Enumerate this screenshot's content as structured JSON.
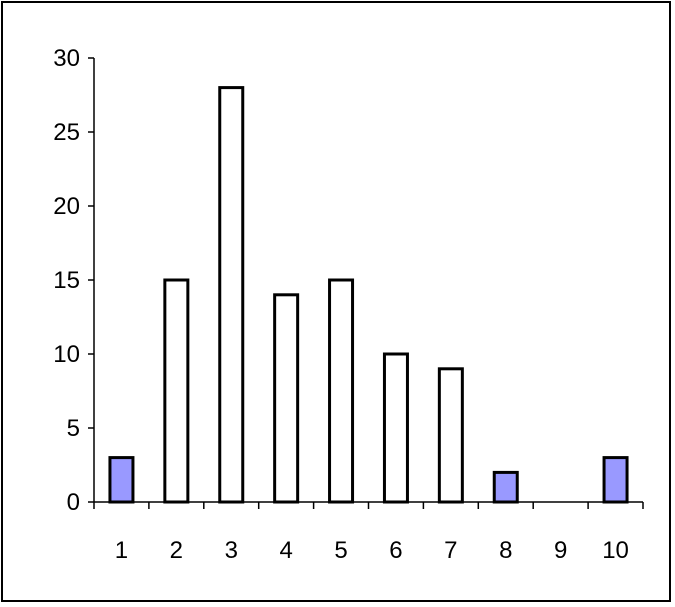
{
  "chart_data": {
    "type": "bar",
    "categories": [
      "1",
      "2",
      "3",
      "4",
      "5",
      "6",
      "7",
      "8",
      "9",
      "10"
    ],
    "values": [
      3,
      15,
      28,
      14,
      15,
      10,
      9,
      2,
      0,
      3
    ],
    "highlighted": [
      true,
      false,
      false,
      false,
      false,
      false,
      false,
      true,
      false,
      true
    ],
    "ylim": [
      0,
      30
    ],
    "yticks": [
      0,
      5,
      10,
      15,
      20,
      25,
      30
    ],
    "grid": false,
    "legend": "none",
    "colors": {
      "highlight_fill": "#9999ff",
      "default_fill": "#ffffff",
      "stroke": "#000000"
    }
  }
}
